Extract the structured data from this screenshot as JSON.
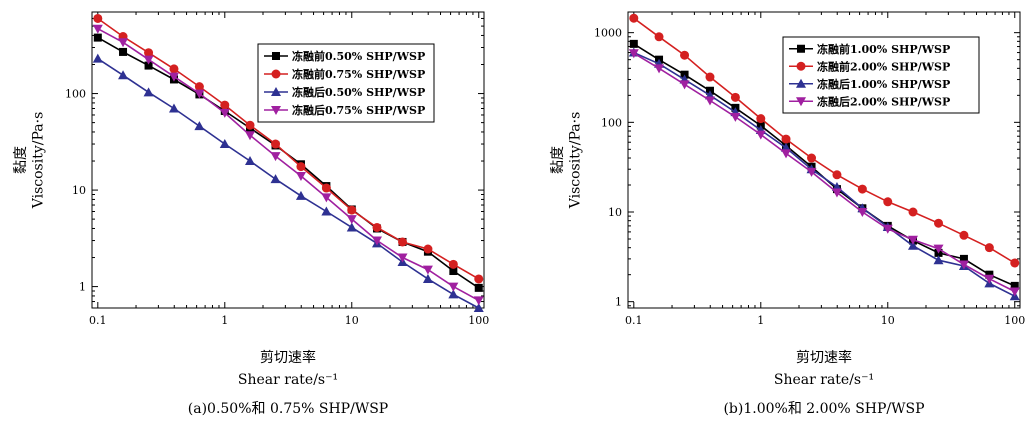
{
  "chart_data": [
    {
      "type": "line",
      "scale": {
        "x": "log",
        "y": "log"
      },
      "xlim": [
        0.09,
        110
      ],
      "ylim": [
        0.6,
        700
      ],
      "x_ticks": [
        0.1,
        1,
        10,
        100
      ],
      "x_tick_labels": [
        "0.1",
        "1",
        "10",
        "100"
      ],
      "y_ticks": [
        1,
        10,
        100
      ],
      "y_tick_labels": [
        "1",
        "10",
        "100"
      ],
      "ylabel_cn": "黏度",
      "ylabel_en": "Viscosity/Pa·s",
      "xlabel_cn": "剪切速率",
      "xlabel_en": "Shear  rate/s⁻¹",
      "caption": "(a)0.50%和 0.75% SHP/WSP",
      "legend": "top-right",
      "x": [
        0.1,
        0.158,
        0.251,
        0.398,
        0.631,
        1,
        1.58,
        2.51,
        3.98,
        6.31,
        10,
        15.8,
        25.1,
        39.8,
        63.1,
        100
      ],
      "series": [
        {
          "name": "冻融前0.50% SHP/WSP",
          "color": "#000000",
          "marker": "square",
          "values": [
            380,
            270,
            195,
            140,
            98,
            66,
            44,
            29,
            18.5,
            11,
            6.3,
            4.0,
            2.9,
            2.3,
            1.45,
            0.97
          ]
        },
        {
          "name": "冻融前0.75% SHP/WSP",
          "color": "#d42020",
          "marker": "circle",
          "values": [
            600,
            390,
            265,
            180,
            118,
            76,
            47,
            30,
            17.5,
            10.5,
            6.2,
            4.1,
            2.9,
            2.45,
            1.7,
            1.2
          ]
        },
        {
          "name": "冻融后0.50% SHP/WSP",
          "color": "#2e3192",
          "marker": "triangle-up",
          "values": [
            230,
            155,
            103,
            70,
            46,
            30,
            20,
            13,
            8.7,
            6.0,
            4.1,
            2.8,
            1.8,
            1.2,
            0.83,
            0.6
          ]
        },
        {
          "name": "冻融后0.75% SHP/WSP",
          "color": "#a020a0",
          "marker": "triangle-down",
          "values": [
            470,
            340,
            225,
            150,
            100,
            63,
            37,
            22.5,
            14,
            8.4,
            5.0,
            3.0,
            2.0,
            1.5,
            1.0,
            0.72
          ]
        }
      ]
    },
    {
      "type": "line",
      "scale": {
        "x": "log",
        "y": "log"
      },
      "xlim": [
        0.09,
        110
      ],
      "ylim": [
        0.85,
        1700
      ],
      "x_ticks": [
        0.1,
        1,
        10,
        100
      ],
      "x_tick_labels": [
        "0.1",
        "1",
        "10",
        "100"
      ],
      "y_ticks": [
        1,
        10,
        100,
        1000
      ],
      "y_tick_labels": [
        "1",
        "10",
        "100",
        "1000"
      ],
      "ylabel_cn": "黏度",
      "ylabel_en": "Viscosity/Pa·s",
      "xlabel_cn": "剪切速率",
      "xlabel_en": "Shear  rate/s⁻¹",
      "caption": "(b)1.00%和 2.00% SHP/WSP",
      "legend": "top-right",
      "x": [
        0.1,
        0.158,
        0.251,
        0.398,
        0.631,
        1,
        1.58,
        2.51,
        3.98,
        6.31,
        10,
        15.8,
        25.1,
        39.8,
        63.1,
        100
      ],
      "series": [
        {
          "name": "冻融前1.00% SHP/WSP",
          "color": "#000000",
          "marker": "square",
          "values": [
            750,
            500,
            340,
            225,
            145,
            92,
            55,
            32,
            18,
            11,
            7.0,
            4.8,
            3.5,
            3.0,
            2.0,
            1.5
          ]
        },
        {
          "name": "冻融前2.00% SHP/WSP",
          "color": "#d42020",
          "marker": "circle",
          "values": [
            1450,
            900,
            560,
            320,
            190,
            110,
            65,
            40,
            26,
            18,
            13,
            10,
            7.5,
            5.5,
            4.0,
            2.7
          ]
        },
        {
          "name": "冻融后1.00% SHP/WSP",
          "color": "#2e3192",
          "marker": "triangle-up",
          "values": [
            600,
            450,
            300,
            200,
            130,
            82,
            52,
            30,
            19,
            11,
            6.8,
            4.2,
            2.9,
            2.5,
            1.6,
            1.15
          ]
        },
        {
          "name": "冻融后2.00% SHP/WSP",
          "color": "#a020a0",
          "marker": "triangle-down",
          "values": [
            590,
            400,
            265,
            175,
            115,
            73,
            45,
            28,
            16.5,
            10,
            6.5,
            4.9,
            3.9,
            2.6,
            1.8,
            1.3
          ]
        }
      ]
    }
  ]
}
